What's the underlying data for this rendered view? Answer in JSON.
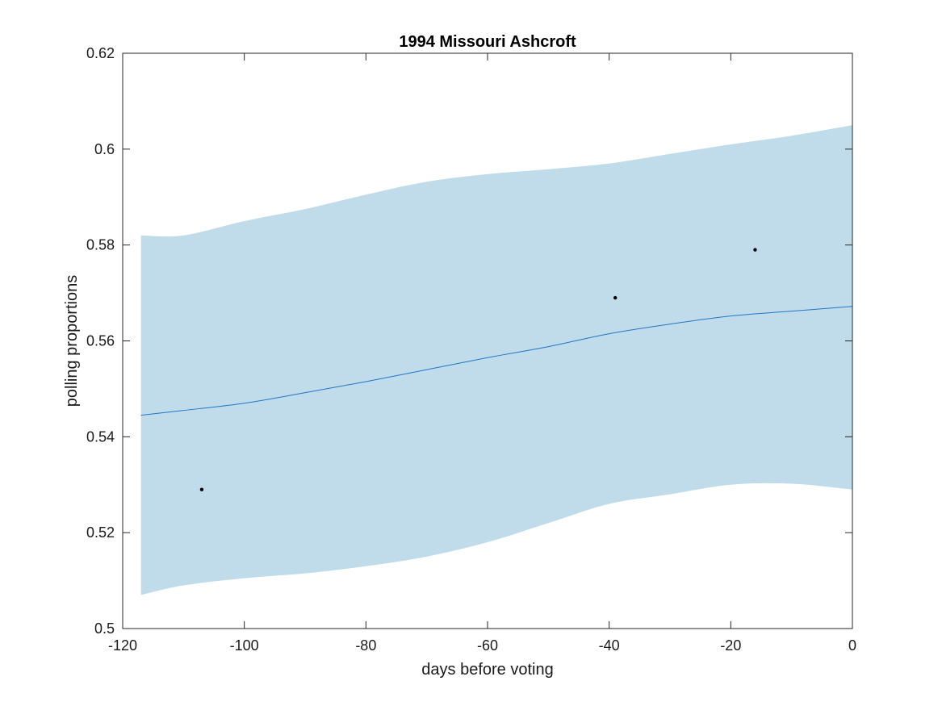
{
  "chart_data": {
    "type": "line",
    "title": "1994 Missouri Ashcroft",
    "xlabel": "days before voting",
    "ylabel": "polling proportions",
    "xlim": [
      -120,
      0
    ],
    "ylim": [
      0.5,
      0.62
    ],
    "x_ticks": [
      -120,
      -100,
      -80,
      -60,
      -40,
      -20,
      0
    ],
    "x_tick_labels": [
      "-120",
      "-100",
      "-80",
      "-60",
      "-40",
      "-20",
      "0"
    ],
    "y_ticks": [
      0.5,
      0.52,
      0.54,
      0.56,
      0.58,
      0.6,
      0.62
    ],
    "y_tick_labels": [
      "0.5",
      "0.52",
      "0.54",
      "0.56",
      "0.58",
      "0.6",
      "0.62"
    ],
    "grid": false,
    "series": [
      {
        "name": "fit",
        "x": [
          -117,
          -110,
          -100,
          -90,
          -80,
          -70,
          -60,
          -50,
          -40,
          -30,
          -20,
          -10,
          0
        ],
        "mean": [
          0.5445,
          0.5455,
          0.547,
          0.5492,
          0.5515,
          0.554,
          0.5565,
          0.5588,
          0.5615,
          0.5635,
          0.5652,
          0.5662,
          0.5672
        ],
        "upper": [
          0.582,
          0.582,
          0.585,
          0.5875,
          0.5905,
          0.5932,
          0.5948,
          0.5958,
          0.597,
          0.599,
          0.601,
          0.6028,
          0.605
        ],
        "lower": [
          0.507,
          0.509,
          0.5105,
          0.5115,
          0.513,
          0.515,
          0.518,
          0.522,
          0.526,
          0.528,
          0.53,
          0.5302,
          0.529
        ]
      },
      {
        "name": "polls",
        "points": [
          {
            "x": -107,
            "y": 0.529
          },
          {
            "x": -39,
            "y": 0.569
          },
          {
            "x": -16,
            "y": 0.579
          }
        ]
      }
    ],
    "colors": {
      "band": "#c0dcea",
      "line": "#1f77c4",
      "points": "#000000",
      "axes": "#262626"
    }
  }
}
